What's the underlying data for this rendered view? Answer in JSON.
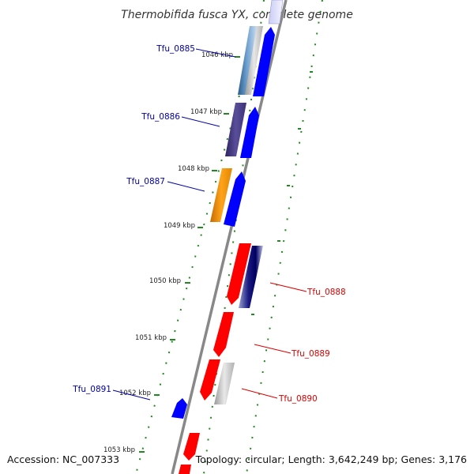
{
  "title": "Thermobifida fusca YX, complete genome",
  "footer": {
    "accession": "Accession: NC_007333",
    "summary": "Topology: circular; Length: 3,642,249 bp; Genes: 3,176"
  },
  "ticks": [
    {
      "label": "1046 kbp"
    },
    {
      "label": "1047 kbp"
    },
    {
      "label": "1048 kbp"
    },
    {
      "label": "1049 kbp"
    },
    {
      "label": "1050 kbp"
    },
    {
      "label": "1051 kbp"
    },
    {
      "label": "1052 kbp"
    },
    {
      "label": "1053 kbp"
    }
  ],
  "gene_labels": [
    {
      "text": "Tfu_0885",
      "color": "#0000aa"
    },
    {
      "text": "Tfu_0886",
      "color": "#0000aa"
    },
    {
      "text": "Tfu_0887",
      "color": "#0000aa"
    },
    {
      "text": "Tfu_0888",
      "color": "#dd0000"
    },
    {
      "text": "Tfu_0889",
      "color": "#dd0000"
    },
    {
      "text": "Tfu_0890",
      "color": "#dd0000"
    },
    {
      "text": "Tfu_0891",
      "color": "#0000aa"
    }
  ],
  "colors": {
    "forward_strand": "#0000ff",
    "reverse_strand": "#ff0000",
    "backbone": "#888888",
    "gc_dots": "#228822",
    "tick": "#228822"
  }
}
